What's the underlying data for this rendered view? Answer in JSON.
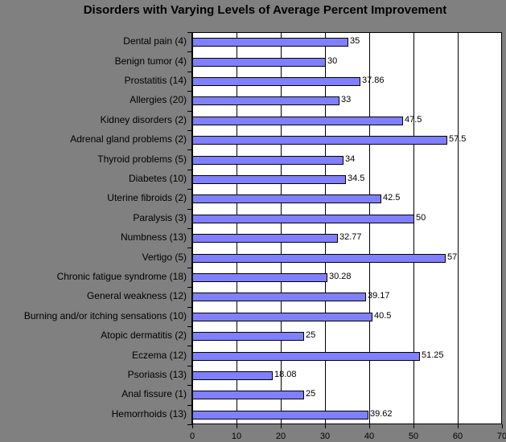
{
  "title": "Disorders with Varying Levels of Average Percent  Improvement",
  "colors": {
    "background": "#808080",
    "plot": "#FFFFFF",
    "bar": "#8080FF",
    "border": "#000000"
  },
  "chart_data": {
    "type": "bar",
    "orientation": "horizontal",
    "title": "Disorders with Varying Levels of Average Percent  Improvement",
    "xlabel": "",
    "ylabel": "",
    "xlim": [
      0,
      70
    ],
    "xticks": [
      0,
      10,
      20,
      30,
      40,
      50,
      60,
      70
    ],
    "grid": "vertical",
    "legend": "none",
    "categories": [
      "Dental pain (4)",
      "Benign tumor (4)",
      "Prostatitis (14)",
      "Allergies (20)",
      "Kidney disorders (2)",
      "Adrenal gland problems (2)",
      "Thyroid problems (5)",
      "Diabetes (10)",
      "Uterine fibroids (2)",
      "Paralysis (3)",
      "Numbness (13)",
      "Vertigo (5)",
      "Chronic fatigue syndrome (18)",
      "General weakness (12)",
      "Burning and/or itching sensations (10)",
      "Atopic dermatitis (2)",
      "Eczema (12)",
      "Psoriasis (13)",
      "Anal fissure (1)",
      "Hemorrhoids (13)"
    ],
    "values": [
      35,
      30,
      37.86,
      33,
      47.5,
      57.5,
      34,
      34.5,
      42.5,
      50,
      32.77,
      57,
      30.28,
      39.17,
      40.5,
      25,
      51.25,
      18.08,
      25,
      39.62
    ],
    "value_labels": [
      "35",
      "30",
      "37.86",
      "33",
      "47.5",
      "57.5",
      "34",
      "34.5",
      "42.5",
      "50",
      "32.77",
      "57",
      "30.28",
      "39.17",
      "40.5",
      "25",
      "51.25",
      "18.08",
      "25",
      "39.62"
    ]
  }
}
